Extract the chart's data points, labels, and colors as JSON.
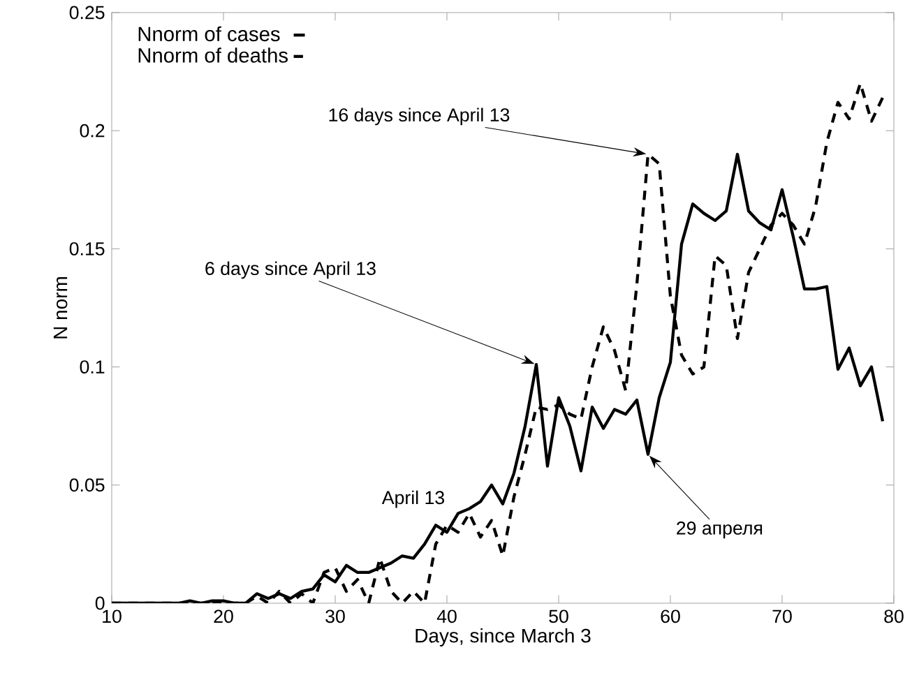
{
  "chart_data": {
    "type": "line",
    "xlabel": "Days, since March 3",
    "ylabel": "N norm",
    "xlim": [
      10,
      80
    ],
    "ylim": [
      0,
      0.25
    ],
    "xticks": [
      10,
      20,
      30,
      40,
      50,
      60,
      70,
      80
    ],
    "yticks": [
      0,
      0.05,
      0.1,
      0.15,
      0.2,
      0.25
    ],
    "legend": "top left",
    "grid": false,
    "marker": "none",
    "x": [
      10,
      11,
      12,
      13,
      14,
      15,
      16,
      17,
      18,
      19,
      20,
      21,
      22,
      23,
      24,
      25,
      26,
      27,
      28,
      29,
      30,
      31,
      32,
      33,
      34,
      35,
      36,
      37,
      38,
      39,
      40,
      41,
      42,
      43,
      44,
      45,
      46,
      47,
      48,
      49,
      50,
      51,
      52,
      53,
      54,
      55,
      56,
      57,
      58,
      59,
      60,
      61,
      62,
      63,
      64,
      65,
      66,
      67,
      68,
      69,
      70,
      71,
      72,
      73,
      74,
      75,
      76,
      77,
      78,
      79
    ],
    "series": [
      {
        "name": "Nnorm of cases",
        "color": "#000000",
        "line_style": "solid",
        "values": [
          0,
          0,
          0,
          0,
          0,
          0,
          0,
          0.001,
          0,
          0.001,
          0.001,
          0,
          0,
          0.004,
          0.002,
          0.004,
          0.002,
          0.005,
          0.006,
          0.012,
          0.009,
          0.016,
          0.013,
          0.013,
          0.015,
          0.017,
          0.02,
          0.019,
          0.025,
          0.033,
          0.03,
          0.038,
          0.04,
          0.043,
          0.05,
          0.042,
          0.055,
          0.075,
          0.101,
          0.058,
          0.087,
          0.075,
          0.056,
          0.083,
          0.074,
          0.082,
          0.08,
          0.086,
          0.063,
          0.087,
          0.102,
          0.152,
          0.169,
          0.165,
          0.162,
          0.166,
          0.19,
          0.166,
          0.161,
          0.158,
          0.175,
          0.155,
          0.133,
          0.133,
          0.134,
          0.099,
          0.108,
          0.092,
          0.1,
          0.077
        ]
      },
      {
        "name": "Nnorm of deaths",
        "color": "#000000",
        "line_style": "dashed",
        "values": [
          0,
          0,
          0,
          0,
          0,
          0,
          0,
          0,
          0,
          0,
          0,
          0,
          0,
          0.003,
          0,
          0.005,
          0,
          0.004,
          0,
          0.013,
          0.015,
          0.005,
          0.01,
          0,
          0.019,
          0.005,
          0,
          0.005,
          0,
          0.025,
          0.033,
          0.03,
          0.038,
          0.028,
          0.035,
          0.02,
          0.045,
          0.063,
          0.083,
          0.082,
          0.084,
          0.08,
          0.078,
          0.1,
          0.117,
          0.107,
          0.09,
          0.135,
          0.19,
          0.186,
          0.13,
          0.105,
          0.097,
          0.1,
          0.147,
          0.143,
          0.112,
          0.14,
          0.15,
          0.16,
          0.165,
          0.16,
          0.152,
          0.168,
          0.195,
          0.212,
          0.205,
          0.22,
          0.204,
          0.214
        ]
      }
    ],
    "annotations": [
      {
        "text": "16 days since April 13",
        "x": 58,
        "y": 0.19
      },
      {
        "text": "6 days since April 13",
        "x": 48,
        "y": 0.101
      },
      {
        "text": "April 13",
        "x": 41,
        "y": 0.038
      },
      {
        "text": "29 апреля",
        "x": 58,
        "y": 0.063
      }
    ]
  }
}
